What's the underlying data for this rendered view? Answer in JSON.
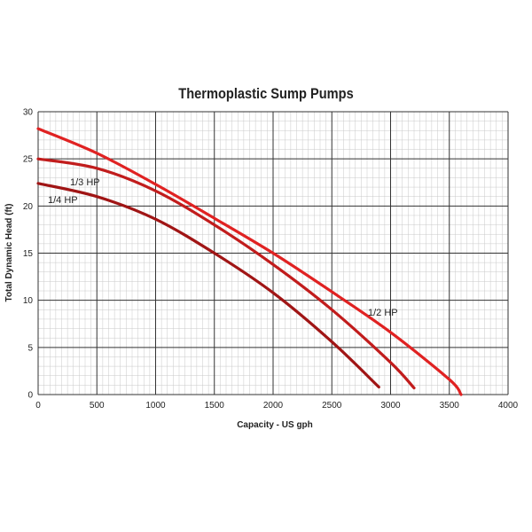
{
  "chart_data": {
    "type": "line",
    "title": "Thermoplastic Sump Pumps",
    "xlabel": "Capacity - US gph",
    "ylabel": "Total Dynamic Head (ft)",
    "xlim": [
      0,
      4000
    ],
    "ylim": [
      0,
      30
    ],
    "x_ticks": [
      0,
      500,
      1000,
      1500,
      2000,
      2500,
      3000,
      3500,
      4000
    ],
    "y_ticks": [
      0,
      5,
      10,
      15,
      20,
      25,
      30
    ],
    "grid": true,
    "legend": "none",
    "series": [
      {
        "name": "1/2 HP",
        "color": "#e02222",
        "x": [
          0,
          500,
          1000,
          1500,
          2000,
          2500,
          3000,
          3500,
          3600
        ],
        "y": [
          28.2,
          25.6,
          22.3,
          18.7,
          15.0,
          10.9,
          6.6,
          1.6,
          0
        ]
      },
      {
        "name": "1/3 HP",
        "color": "#c11c1c",
        "x": [
          0,
          500,
          1000,
          1500,
          2000,
          2500,
          3000,
          3200
        ],
        "y": [
          25.0,
          24.0,
          21.6,
          18.0,
          13.8,
          9.0,
          3.4,
          0.7
        ]
      },
      {
        "name": "1/4 HP",
        "color": "#a01515",
        "x": [
          0,
          500,
          1000,
          1500,
          2000,
          2500,
          2900
        ],
        "y": [
          22.4,
          21.0,
          18.6,
          15.0,
          10.8,
          5.6,
          0.8
        ]
      }
    ]
  }
}
